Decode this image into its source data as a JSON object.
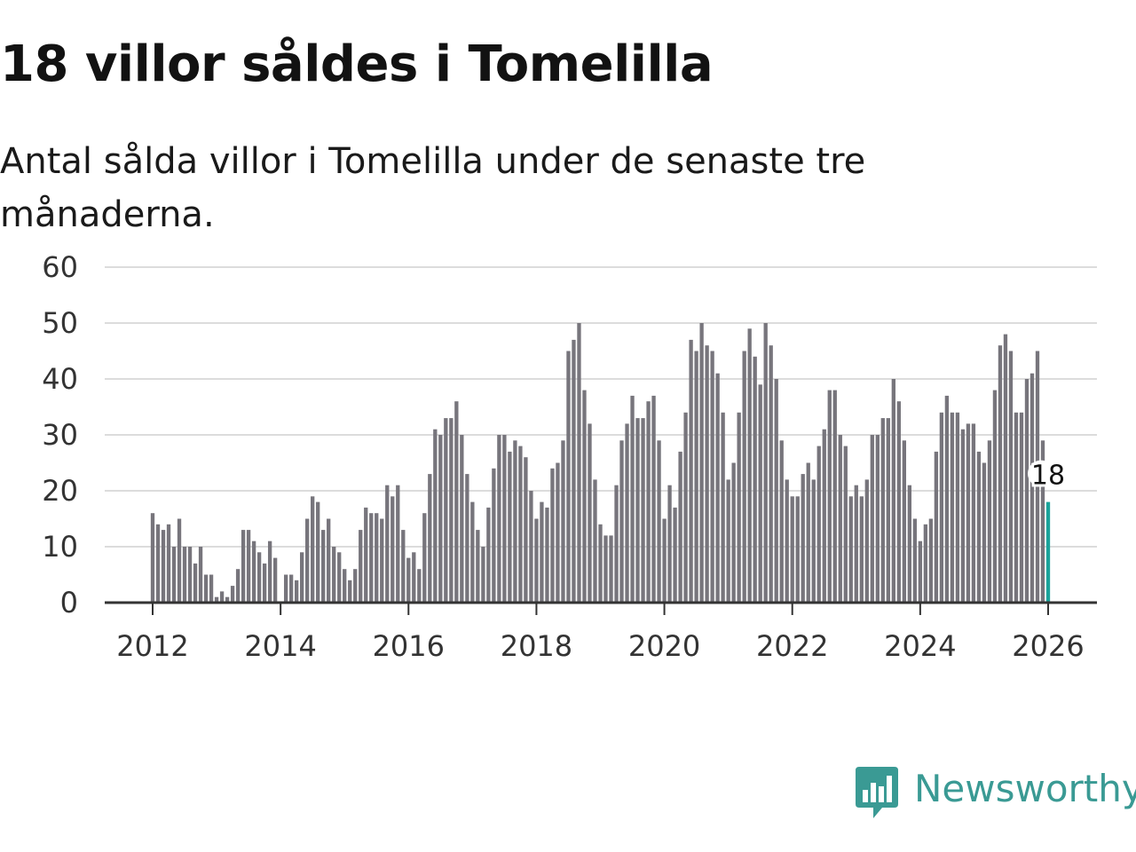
{
  "title": "18 villor såldes i Tomelilla",
  "subtitle": "Antal sålda villor i Tomelilla under de senaste tre månaderna.",
  "logo": {
    "text": "Newsworthy",
    "icon": "newsworthy-bar-chart-icon"
  },
  "colors": {
    "bar": "#77757c",
    "highlight": "#1aa39b",
    "grid": "#dcdcdc",
    "axis": "#333333",
    "brand": "#3a9a94"
  },
  "chart_data": {
    "type": "bar",
    "title": "18 villor såldes i Tomelilla",
    "xlabel": "",
    "ylabel": "",
    "ylim": [
      0,
      60
    ],
    "y_ticks": [
      0,
      10,
      20,
      30,
      40,
      50,
      60
    ],
    "x_ticks": [
      "2012",
      "2014",
      "2016",
      "2018",
      "2020",
      "2022",
      "2024",
      "2026"
    ],
    "start": "2012-01",
    "frequency": "monthly",
    "grid": true,
    "highlight": {
      "label": "18",
      "index": "last"
    },
    "values": [
      16,
      14,
      13,
      14,
      10,
      15,
      10,
      10,
      7,
      10,
      5,
      5,
      1,
      2,
      1,
      3,
      6,
      13,
      13,
      11,
      9,
      7,
      11,
      8,
      0,
      5,
      5,
      4,
      9,
      15,
      19,
      18,
      13,
      15,
      10,
      9,
      6,
      4,
      6,
      13,
      17,
      16,
      16,
      15,
      21,
      19,
      21,
      13,
      8,
      9,
      6,
      16,
      23,
      31,
      30,
      33,
      33,
      36,
      30,
      23,
      18,
      13,
      10,
      17,
      24,
      30,
      30,
      27,
      29,
      28,
      26,
      20,
      15,
      18,
      17,
      24,
      25,
      29,
      45,
      47,
      50,
      38,
      32,
      22,
      14,
      12,
      12,
      21,
      29,
      32,
      37,
      33,
      33,
      36,
      37,
      29,
      15,
      21,
      17,
      27,
      34,
      47,
      45,
      50,
      46,
      45,
      41,
      34,
      22,
      25,
      34,
      45,
      49,
      44,
      39,
      50,
      46,
      40,
      29,
      22,
      19,
      19,
      23,
      25,
      22,
      28,
      31,
      38,
      38,
      30,
      28,
      19,
      21,
      19,
      22,
      30,
      30,
      33,
      33,
      40,
      36,
      29,
      21,
      15,
      11,
      14,
      15,
      27,
      34,
      37,
      34,
      34,
      31,
      32,
      32,
      27,
      25,
      29,
      38,
      46,
      48,
      45,
      34,
      34,
      40,
      41,
      45,
      29,
      18
    ]
  }
}
